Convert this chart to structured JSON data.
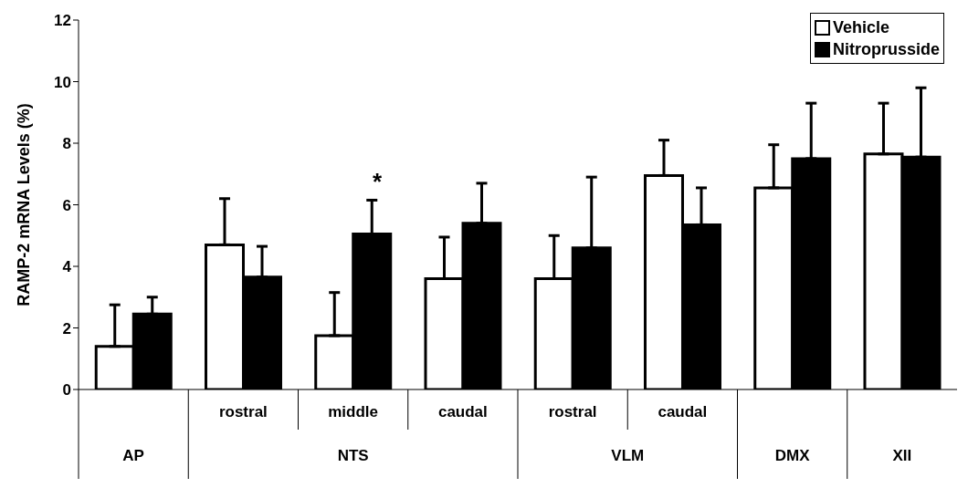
{
  "chart_data": {
    "type": "bar",
    "ylabel": "RAMP-2 mRNA Levels (%)",
    "categories": [
      null,
      "rostral",
      "middle",
      "caudal",
      "rostral",
      "caudal",
      null,
      null
    ],
    "series": [
      {
        "name": "Vehicle",
        "color": "#ffffff",
        "values": [
          1.4,
          4.7,
          1.75,
          3.6,
          3.6,
          6.95,
          6.55,
          7.65
        ],
        "errors": [
          [
            1.4,
            2.75
          ],
          [
            4.7,
            6.2
          ],
          [
            1.75,
            3.15
          ],
          [
            3.6,
            4.95
          ],
          [
            3.6,
            5.0
          ],
          [
            6.95,
            8.1
          ],
          [
            6.55,
            7.95
          ],
          [
            7.65,
            9.3
          ]
        ]
      },
      {
        "name": "Nitroprusside",
        "color": "#000000",
        "values": [
          2.45,
          3.65,
          5.05,
          5.4,
          4.6,
          5.35,
          7.5,
          7.55
        ],
        "errors": [
          [
            2.45,
            3.0
          ],
          [
            3.65,
            4.65
          ],
          [
            5.05,
            6.15
          ],
          [
            5.4,
            6.7
          ],
          [
            4.6,
            6.9
          ],
          [
            5.35,
            6.55
          ],
          [
            7.5,
            9.3
          ],
          [
            7.55,
            9.8
          ]
        ]
      }
    ],
    "annotations": [
      "AP",
      "NTS",
      "VLM",
      "DMX",
      "XII",
      "*"
    ],
    "ylim": [
      0,
      12
    ],
    "yticks": [
      0,
      2,
      4,
      6,
      8,
      10,
      12
    ],
    "grid": false,
    "legend": "top right"
  }
}
